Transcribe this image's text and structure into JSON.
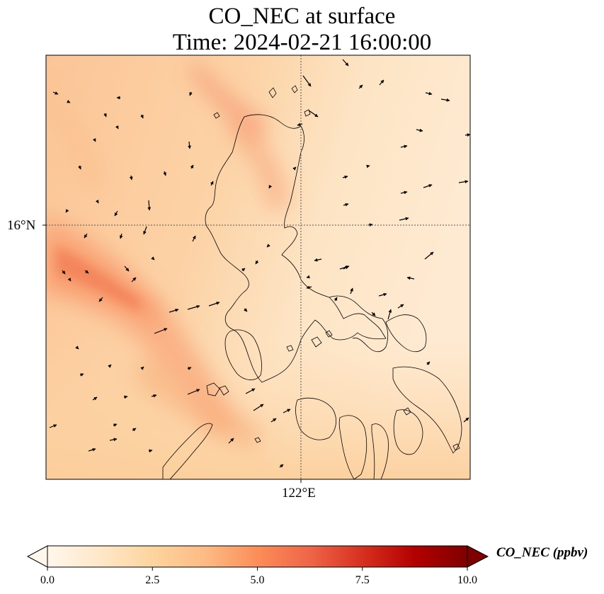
{
  "map": {
    "title_line1": "CO_NEC at surface",
    "title_line2": "Time: 2024-02-21 16:00:00",
    "lat_label": "16°N",
    "lon_label": "122°E",
    "colors": {
      "low": "#fff7ec",
      "mid": "#fdd49e",
      "high": "#ef6548",
      "max": "#7f0000",
      "coastline": "#000000",
      "gridline": "#555555"
    }
  },
  "colorbar": {
    "label": "CO_NEC (ppbv)",
    "min": 0.0,
    "max": 10.0,
    "ticks": [
      "0.0",
      "2.5",
      "5.0",
      "7.5",
      "10.0"
    ],
    "stops": [
      "#fff7ec",
      "#fee8c8",
      "#fdd49e",
      "#fdbb84",
      "#fc8d59",
      "#ef6548",
      "#d7301f",
      "#b30000",
      "#7f0000"
    ]
  }
}
